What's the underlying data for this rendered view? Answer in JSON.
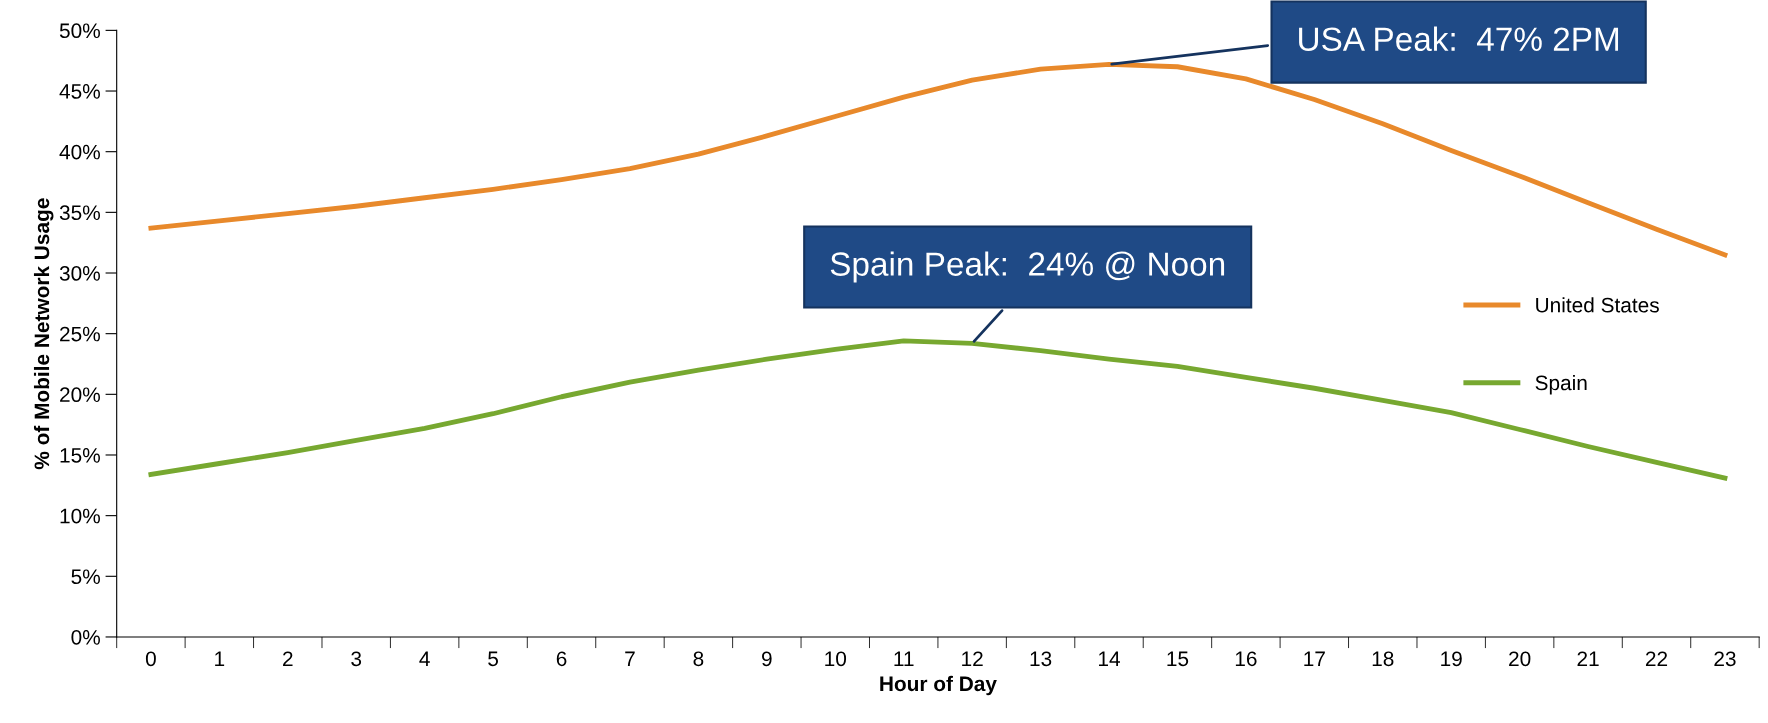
{
  "chart_data": {
    "type": "line",
    "xlabel": "Hour of Day",
    "ylabel": "% of Mobile Network Usage",
    "categories": [
      "0",
      "1",
      "2",
      "3",
      "4",
      "5",
      "6",
      "7",
      "8",
      "9",
      "10",
      "11",
      "12",
      "13",
      "14",
      "15",
      "16",
      "17",
      "18",
      "19",
      "20",
      "21",
      "22",
      "23"
    ],
    "series": [
      {
        "name": "United States",
        "color": "#e8892b",
        "values": [
          33.7,
          34.3,
          34.9,
          35.5,
          36.2,
          36.9,
          37.7,
          38.6,
          39.8,
          41.3,
          42.9,
          44.5,
          45.9,
          46.8,
          47.2,
          47.0,
          46.0,
          44.3,
          42.3,
          40.1,
          38.0,
          35.8,
          33.6,
          31.5
        ]
      },
      {
        "name": "Spain",
        "color": "#77a830",
        "values": [
          13.4,
          14.3,
          15.2,
          16.2,
          17.2,
          18.4,
          19.8,
          21.0,
          22.0,
          22.9,
          23.7,
          24.4,
          24.2,
          23.6,
          22.9,
          22.3,
          21.4,
          20.5,
          19.5,
          18.5,
          17.1,
          15.7,
          14.4,
          13.1
        ]
      }
    ],
    "ylim": [
      0,
      50
    ],
    "yticks": [
      {
        "value": 0,
        "label": "0%"
      },
      {
        "value": 5,
        "label": "5%"
      },
      {
        "value": 10,
        "label": "10%"
      },
      {
        "value": 15,
        "label": "15%"
      },
      {
        "value": 20,
        "label": "20%"
      },
      {
        "value": 25,
        "label": "25%"
      },
      {
        "value": 30,
        "label": "30%"
      },
      {
        "value": 35,
        "label": "35%"
      },
      {
        "value": 40,
        "label": "40%"
      },
      {
        "value": 45,
        "label": "45%"
      },
      {
        "value": 50,
        "label": "50%"
      }
    ],
    "annotations": [
      {
        "text": "USA Peak:  47% 2PM",
        "x": "14",
        "y": 47.2
      },
      {
        "text": "Spain Peak:  24% @ Noon",
        "x": "12",
        "y": 24.2
      }
    ],
    "legend": "right",
    "grid": false,
    "marker": "none",
    "line_style": "solid"
  }
}
